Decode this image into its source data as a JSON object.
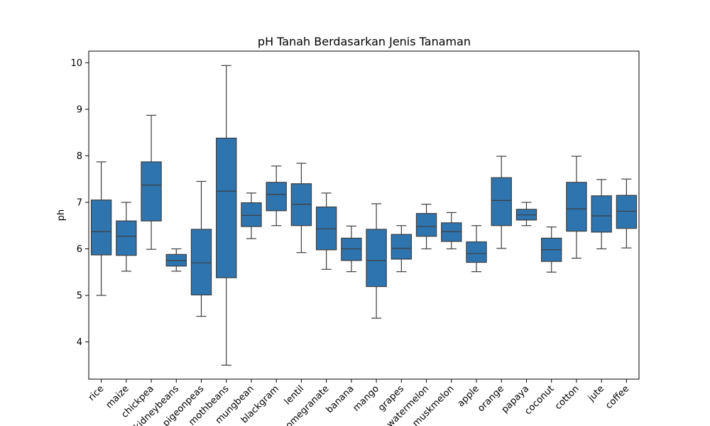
{
  "chart_data": {
    "type": "box",
    "title": "pH Tanah Berdasarkan Jenis Tanaman",
    "xlabel": "",
    "ylabel": "ph",
    "ylim": [
      3.2,
      10.25
    ],
    "yticks": [
      4,
      5,
      6,
      7,
      8,
      9,
      10
    ],
    "grid": false,
    "box_color": "#2e75b0",
    "line_color": "#3d3d3d",
    "categories": [
      "rice",
      "maize",
      "chickpea",
      "kidneybeans",
      "pigeonpeas",
      "mothbeans",
      "mungbean",
      "blackgram",
      "lentil",
      "pomegranate",
      "banana",
      "mango",
      "grapes",
      "watermelon",
      "muskmelon",
      "apple",
      "orange",
      "papaya",
      "coconut",
      "cotton",
      "jute",
      "coffee"
    ],
    "boxes": [
      {
        "min": 5.0,
        "q1": 5.87,
        "median": 6.37,
        "q3": 7.05,
        "max": 7.87
      },
      {
        "min": 5.52,
        "q1": 5.86,
        "median": 6.27,
        "q3": 6.6,
        "max": 7.0
      },
      {
        "min": 5.99,
        "q1": 6.6,
        "median": 7.37,
        "q3": 7.87,
        "max": 8.87
      },
      {
        "min": 5.52,
        "q1": 5.63,
        "median": 5.75,
        "q3": 5.88,
        "max": 6.0
      },
      {
        "min": 4.55,
        "q1": 5.01,
        "median": 5.7,
        "q3": 6.42,
        "max": 7.45
      },
      {
        "min": 3.5,
        "q1": 5.38,
        "median": 7.24,
        "q3": 8.38,
        "max": 9.94
      },
      {
        "min": 6.22,
        "q1": 6.48,
        "median": 6.72,
        "q3": 6.99,
        "max": 7.2
      },
      {
        "min": 6.5,
        "q1": 6.82,
        "median": 7.17,
        "q3": 7.43,
        "max": 7.78
      },
      {
        "min": 5.92,
        "q1": 6.5,
        "median": 6.96,
        "q3": 7.4,
        "max": 7.84
      },
      {
        "min": 5.56,
        "q1": 5.98,
        "median": 6.43,
        "q3": 6.9,
        "max": 7.2
      },
      {
        "min": 5.51,
        "q1": 5.75,
        "median": 6.0,
        "q3": 6.23,
        "max": 6.49
      },
      {
        "min": 4.51,
        "q1": 5.19,
        "median": 5.75,
        "q3": 6.42,
        "max": 6.97
      },
      {
        "min": 5.51,
        "q1": 5.78,
        "median": 6.01,
        "q3": 6.31,
        "max": 6.5
      },
      {
        "min": 6.0,
        "q1": 6.27,
        "median": 6.48,
        "q3": 6.76,
        "max": 6.96
      },
      {
        "min": 6.0,
        "q1": 6.16,
        "median": 6.37,
        "q3": 6.56,
        "max": 6.78
      },
      {
        "min": 5.51,
        "q1": 5.71,
        "median": 5.9,
        "q3": 6.15,
        "max": 6.5
      },
      {
        "min": 6.01,
        "q1": 6.5,
        "median": 7.04,
        "q3": 7.53,
        "max": 7.99
      },
      {
        "min": 6.5,
        "q1": 6.62,
        "median": 6.73,
        "q3": 6.85,
        "max": 7.0
      },
      {
        "min": 5.5,
        "q1": 5.73,
        "median": 5.98,
        "q3": 6.23,
        "max": 6.47
      },
      {
        "min": 5.8,
        "q1": 6.38,
        "median": 6.86,
        "q3": 7.43,
        "max": 7.99
      },
      {
        "min": 6.0,
        "q1": 6.36,
        "median": 6.71,
        "q3": 7.14,
        "max": 7.49
      },
      {
        "min": 6.02,
        "q1": 6.44,
        "median": 6.81,
        "q3": 7.15,
        "max": 7.5
      }
    ]
  }
}
